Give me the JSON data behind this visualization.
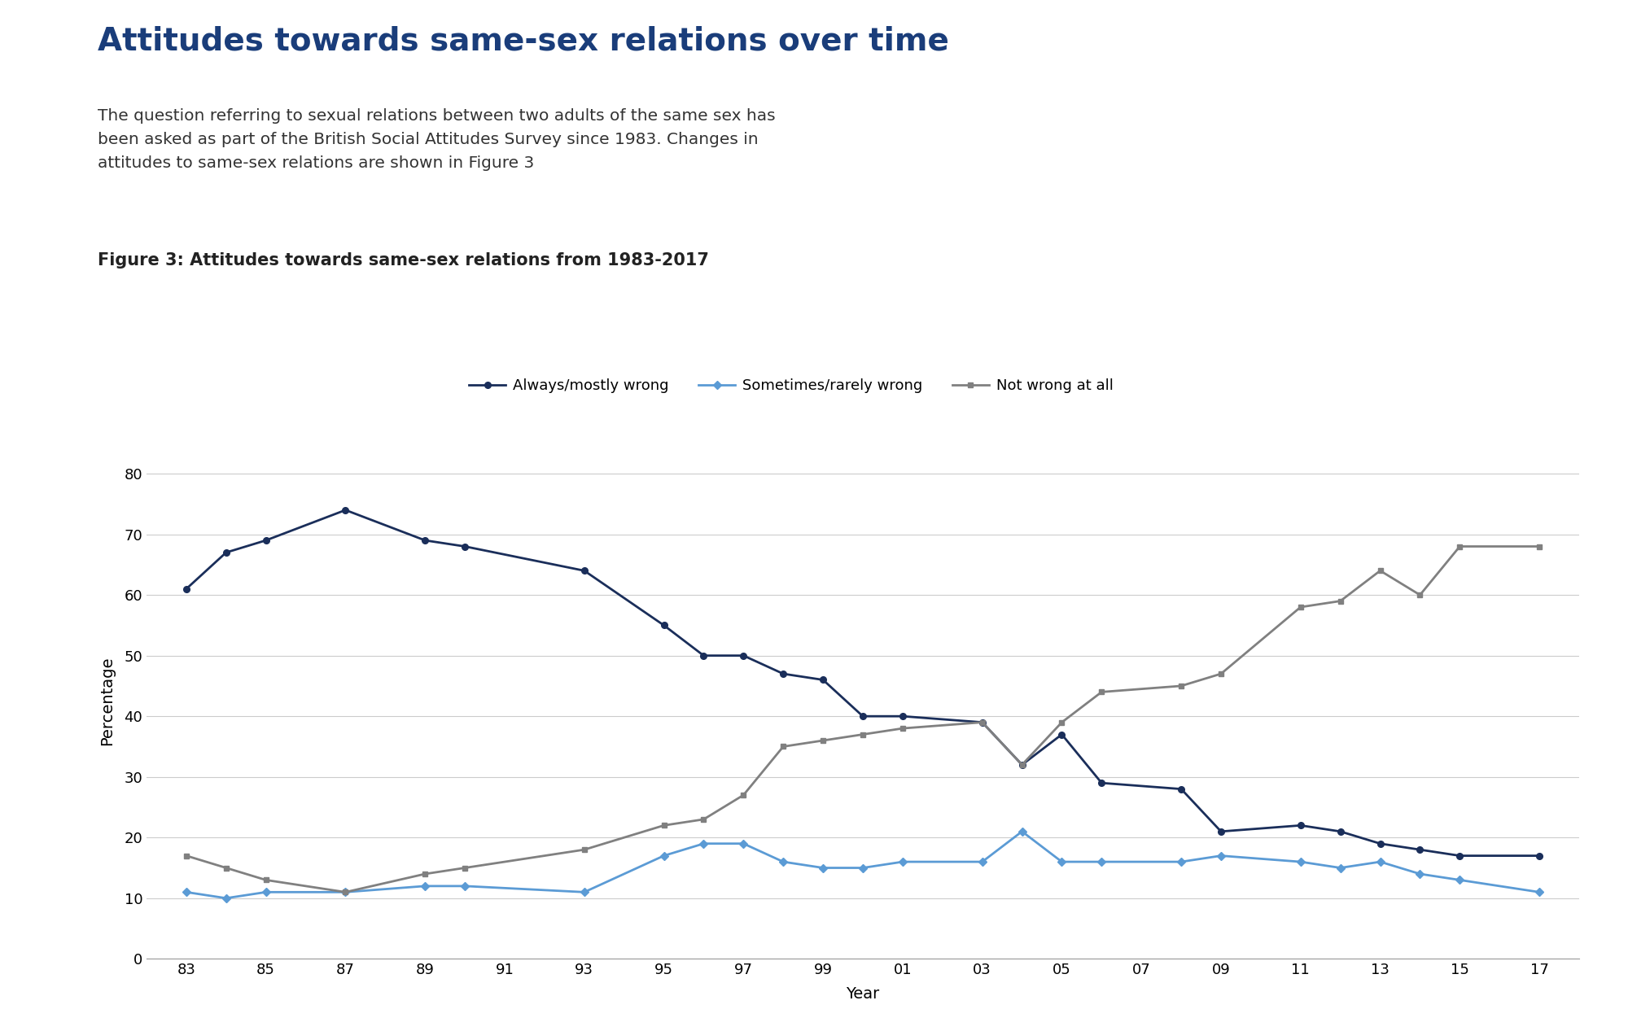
{
  "title": "Attitudes towards same-sex relations over time",
  "subtitle": "The question referring to sexual relations between two adults of the same sex has\nbeen asked as part of the British Social Attitudes Survey since 1983. Changes in\nattitudes to same-sex relations are shown in Figure 3",
  "figure_label": "Figure 3: Attitudes towards same-sex relations from 1983-2017",
  "xlabel": "Year",
  "ylabel": "Percentage",
  "background_color": "#ffffff",
  "always_wrong_years": [
    1983,
    1984,
    1985,
    1987,
    1989,
    1990,
    1993,
    1995,
    1996,
    1997,
    1998,
    1999,
    2000,
    2001,
    2003,
    2004,
    2005,
    2006,
    2008,
    2009,
    2011,
    2012,
    2013,
    2014,
    2015,
    2017
  ],
  "always_wrong_vals": [
    61,
    67,
    69,
    74,
    69,
    68,
    64,
    55,
    50,
    50,
    47,
    46,
    40,
    40,
    39,
    32,
    37,
    29,
    28,
    21,
    22,
    21,
    19,
    18,
    17,
    17
  ],
  "sometimes_wrong_years": [
    1983,
    1984,
    1985,
    1987,
    1989,
    1990,
    1993,
    1995,
    1996,
    1997,
    1998,
    1999,
    2000,
    2001,
    2003,
    2004,
    2005,
    2006,
    2008,
    2009,
    2011,
    2012,
    2013,
    2014,
    2015,
    2017
  ],
  "sometimes_wrong_vals": [
    11,
    10,
    11,
    11,
    12,
    12,
    11,
    17,
    19,
    19,
    16,
    15,
    15,
    16,
    16,
    21,
    16,
    16,
    16,
    17,
    16,
    15,
    16,
    14,
    13,
    11
  ],
  "not_wrong_years": [
    1983,
    1984,
    1985,
    1987,
    1989,
    1990,
    1993,
    1995,
    1996,
    1997,
    1998,
    1999,
    2000,
    2001,
    2003,
    2004,
    2005,
    2006,
    2008,
    2009,
    2011,
    2012,
    2013,
    2014,
    2015,
    2017
  ],
  "not_wrong_vals": [
    17,
    15,
    13,
    11,
    14,
    15,
    18,
    22,
    23,
    27,
    35,
    36,
    37,
    38,
    39,
    32,
    39,
    44,
    45,
    47,
    58,
    59,
    64,
    60,
    68,
    68
  ],
  "color_always": "#1a2e5a",
  "color_sometimes": "#5b9bd5",
  "color_not_wrong": "#808080",
  "ylim": [
    0,
    85
  ],
  "yticks": [
    0,
    10,
    20,
    30,
    40,
    50,
    60,
    70,
    80
  ],
  "xtick_labels": [
    "83",
    "85",
    "87",
    "89",
    "91",
    "93",
    "95",
    "97",
    "99",
    "01",
    "03",
    "05",
    "07",
    "09",
    "11",
    "13",
    "15",
    "17"
  ],
  "xtick_positions": [
    1983,
    1985,
    1987,
    1989,
    1991,
    1993,
    1995,
    1997,
    1999,
    2001,
    2003,
    2005,
    2007,
    2009,
    2011,
    2013,
    2015,
    2017
  ]
}
